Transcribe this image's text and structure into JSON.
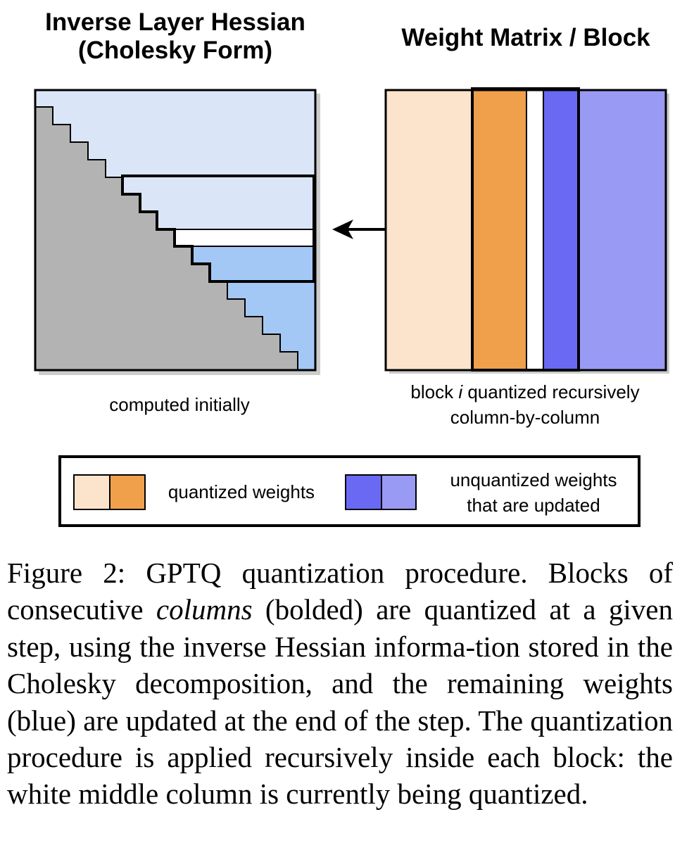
{
  "hessian": {
    "title_line1": "Inverse Layer Hessian",
    "title_line2": "(Cholesky Form)",
    "note": "computed initially"
  },
  "weights": {
    "title": "Weight Matrix / Block",
    "note_part1": "block ",
    "note_italic": "i",
    "note_part2": " quantized recursively",
    "note_line2": "column-by-column"
  },
  "legend": {
    "quantized_label": "quantized weights",
    "unquantized_line1": "unquantized weights",
    "unquantized_line2": "that are updated"
  },
  "colors": {
    "gray_triangle": "#b3b3b3",
    "light_blue": "#dae6f8",
    "mid_blue": "#a4c8f6",
    "light_orange": "#fbe4cb",
    "orange": "#f0a04b",
    "blue": "#6a69f4",
    "light_purple": "#999af4"
  },
  "caption": {
    "part1": "Figure 2: GPTQ quantization procedure. Blocks of consecutive ",
    "italic": "columns",
    "part2": " (bolded) are quantized at a given step, using the inverse Hessian informa-tion stored in the Cholesky decomposition, and the remaining weights (blue) are updated at the end of the step.  The quantization procedure is applied recursively inside each block: the white middle column is currently being quantized."
  }
}
